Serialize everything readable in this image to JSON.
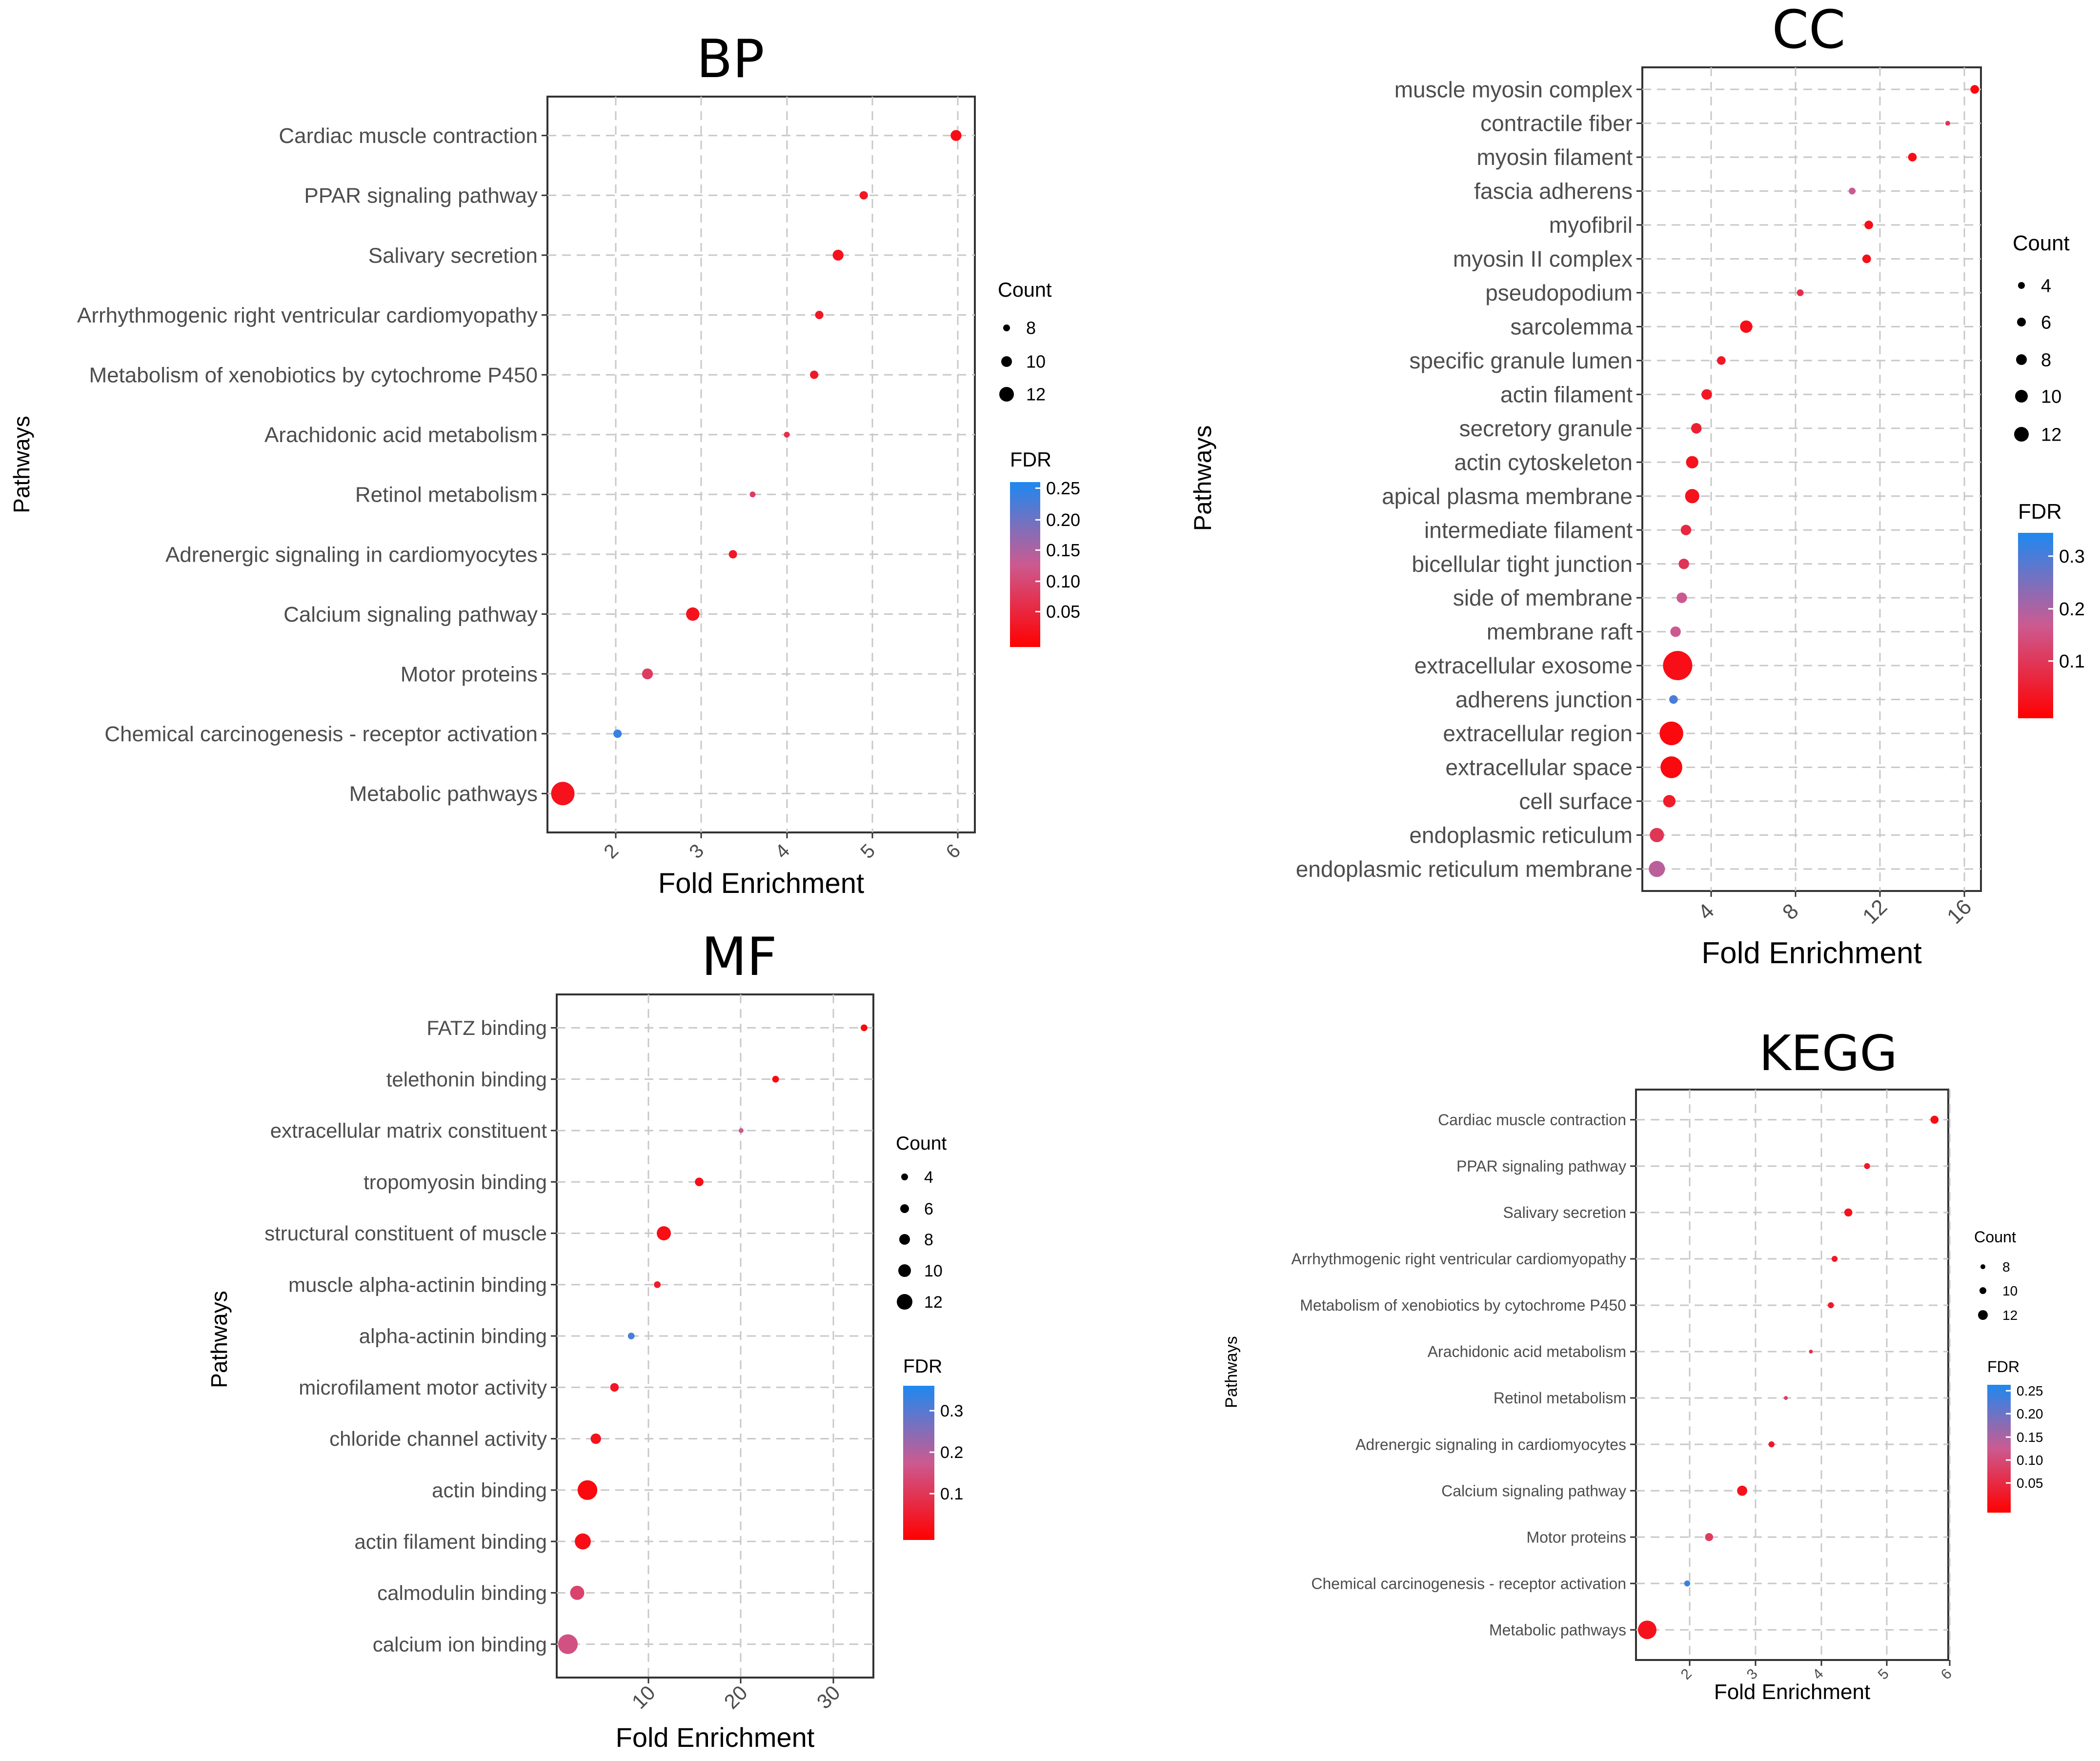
{
  "chart_data": [
    {
      "id": "bp",
      "type": "scatter",
      "title": "BP",
      "xlabel": "Fold Enrichment",
      "ylabel": "Pathways",
      "xlim": [
        1.2,
        6.2
      ],
      "xticks": [
        "2",
        "3",
        "4",
        "5",
        "6"
      ],
      "categories": [
        "Cardiac muscle contraction",
        "PPAR signaling pathway",
        "Salivary secretion",
        "Arrhythmogenic right ventricular cardiomyopathy",
        "Metabolism of xenobiotics by cytochrome P450",
        "Arachidonic acid metabolism",
        "Retinol metabolism",
        "Adrenergic signaling in cardiomyocytes",
        "Calcium signaling pathway",
        "Motor proteins",
        "Chemical carcinogenesis - receptor activation",
        "Metabolic pathways"
      ],
      "fold_enrichment": [
        5.98,
        4.9,
        4.6,
        4.38,
        4.32,
        4.0,
        3.6,
        3.37,
        2.9,
        2.37,
        2.02,
        1.38
      ],
      "count": [
        9,
        8,
        9,
        8,
        8,
        7,
        7,
        8,
        10,
        9,
        8,
        14
      ],
      "fdr": [
        0.02,
        0.04,
        0.03,
        0.04,
        0.04,
        0.08,
        0.1,
        0.04,
        0.03,
        0.1,
        0.28,
        0.03
      ],
      "legend": {
        "count_title": "Count",
        "count_labels": [
          "8",
          "10",
          "12"
        ],
        "fdr_title": "FDR",
        "fdr_labels": [
          "0.25",
          "0.20",
          "0.15",
          "0.10",
          "0.05"
        ]
      }
    },
    {
      "id": "cc",
      "type": "scatter",
      "title": "CC",
      "xlabel": "Fold Enrichment",
      "ylabel": "Pathways",
      "xlim": [
        0,
        16.3
      ],
      "xticks": [
        "4",
        "8",
        "12",
        "16"
      ],
      "categories": [
        "muscle myosin complex",
        "contractile fiber",
        "myosin filament",
        "fascia adherens",
        "myofibril",
        "myosin II complex",
        "pseudopodium",
        "sarcolemma",
        "specific granule lumen",
        "actin filament",
        "secretory granule",
        "actin cytoskeleton",
        "apical plasma membrane",
        "intermediate filament",
        "bicellular tight junction",
        "side of membrane",
        "membrane raft",
        "extracellular exosome",
        "adherens junction",
        "extracellular region",
        "extracellular space",
        "cell surface",
        "endoplasmic reticulum",
        "endoplasmic reticulum membrane"
      ],
      "fold_enrichment": [
        16.0,
        14.7,
        13.0,
        10.1,
        10.9,
        10.8,
        7.6,
        5.0,
        3.8,
        3.1,
        2.6,
        2.4,
        2.4,
        2.1,
        2.0,
        1.9,
        1.6,
        1.7,
        1.5,
        1.4,
        1.4,
        1.3,
        0.7,
        0.7
      ],
      "count": [
        4,
        2,
        4,
        3,
        4,
        4,
        3,
        6,
        4,
        5,
        5,
        6,
        7,
        5,
        5,
        5,
        5,
        15,
        4,
        12,
        11,
        6,
        7,
        8
      ],
      "fdr": [
        0.02,
        0.12,
        0.03,
        0.2,
        0.03,
        0.03,
        0.1,
        0.03,
        0.05,
        0.05,
        0.07,
        0.04,
        0.04,
        0.09,
        0.12,
        0.2,
        0.2,
        0.03,
        0.35,
        0.02,
        0.02,
        0.06,
        0.12,
        0.22
      ],
      "legend": {
        "count_title": "Count",
        "count_labels": [
          "4",
          "6",
          "8",
          "10",
          "12"
        ],
        "fdr_title": "FDR",
        "fdr_labels": [
          "0.3",
          "0.2",
          "0.1"
        ]
      }
    },
    {
      "id": "mf",
      "type": "scatter",
      "title": "MF",
      "xlabel": "Fold Enrichment",
      "ylabel": "Pathways",
      "xlim": [
        0,
        34
      ],
      "xticks": [
        "10",
        "20",
        "30"
      ],
      "categories": [
        "FATZ binding",
        "telethonin binding",
        "extracellular matrix constituent",
        "tropomyosin binding",
        "structural constituent of muscle",
        "muscle alpha-actinin binding",
        "alpha-actinin binding",
        "microfilament motor activity",
        "chloride channel activity",
        "actin binding",
        "actin filament binding",
        "calmodulin binding",
        "calcium ion binding"
      ],
      "fold_enrichment": [
        33.0,
        23.5,
        19.8,
        15.3,
        11.5,
        10.8,
        8.0,
        6.2,
        4.2,
        3.3,
        2.8,
        2.2,
        1.2
      ],
      "count": [
        3,
        3,
        2,
        4,
        7,
        3,
        3,
        4,
        5,
        10,
        8,
        7,
        10
      ],
      "fdr": [
        0.02,
        0.02,
        0.2,
        0.03,
        0.03,
        0.06,
        0.35,
        0.05,
        0.04,
        0.02,
        0.03,
        0.15,
        0.18
      ],
      "legend": {
        "count_title": "Count",
        "count_labels": [
          "4",
          "6",
          "8",
          "10",
          "12"
        ],
        "fdr_title": "FDR",
        "fdr_labels": [
          "0.3",
          "0.2",
          "0.1"
        ]
      }
    },
    {
      "id": "kegg",
      "type": "scatter",
      "title": "KEGG",
      "xlabel": "Fold Enrichment",
      "ylabel": "Pathways",
      "xlim": [
        1.2,
        6.2
      ],
      "xticks": [
        "2",
        "3",
        "4",
        "5",
        "6"
      ],
      "categories": [
        "Cardiac muscle contraction",
        "PPAR signaling pathway",
        "Salivary secretion",
        "Arrhythmogenic right ventricular cardiomyopathy",
        "Metabolism of xenobiotics by cytochrome P450",
        "Arachidonic acid metabolism",
        "Retinol metabolism",
        "Adrenergic signaling in cardiomyocytes",
        "Calcium signaling pathway",
        "Motor proteins",
        "Chemical carcinogenesis - receptor activation",
        "Metabolic pathways"
      ],
      "fold_enrichment": [
        5.98,
        4.9,
        4.6,
        4.38,
        4.32,
        4.0,
        3.6,
        3.37,
        2.9,
        2.37,
        2.02,
        1.38
      ],
      "count": [
        9,
        8,
        9,
        8,
        8,
        7,
        7,
        8,
        10,
        9,
        8,
        14
      ],
      "fdr": [
        0.02,
        0.04,
        0.03,
        0.04,
        0.04,
        0.08,
        0.1,
        0.04,
        0.03,
        0.1,
        0.28,
        0.03
      ],
      "legend": {
        "count_title": "Count",
        "count_labels": [
          "8",
          "10",
          "12"
        ],
        "fdr_title": "FDR",
        "fdr_labels": [
          "0.25",
          "0.20",
          "0.15",
          "0.10",
          "0.05"
        ]
      }
    }
  ]
}
